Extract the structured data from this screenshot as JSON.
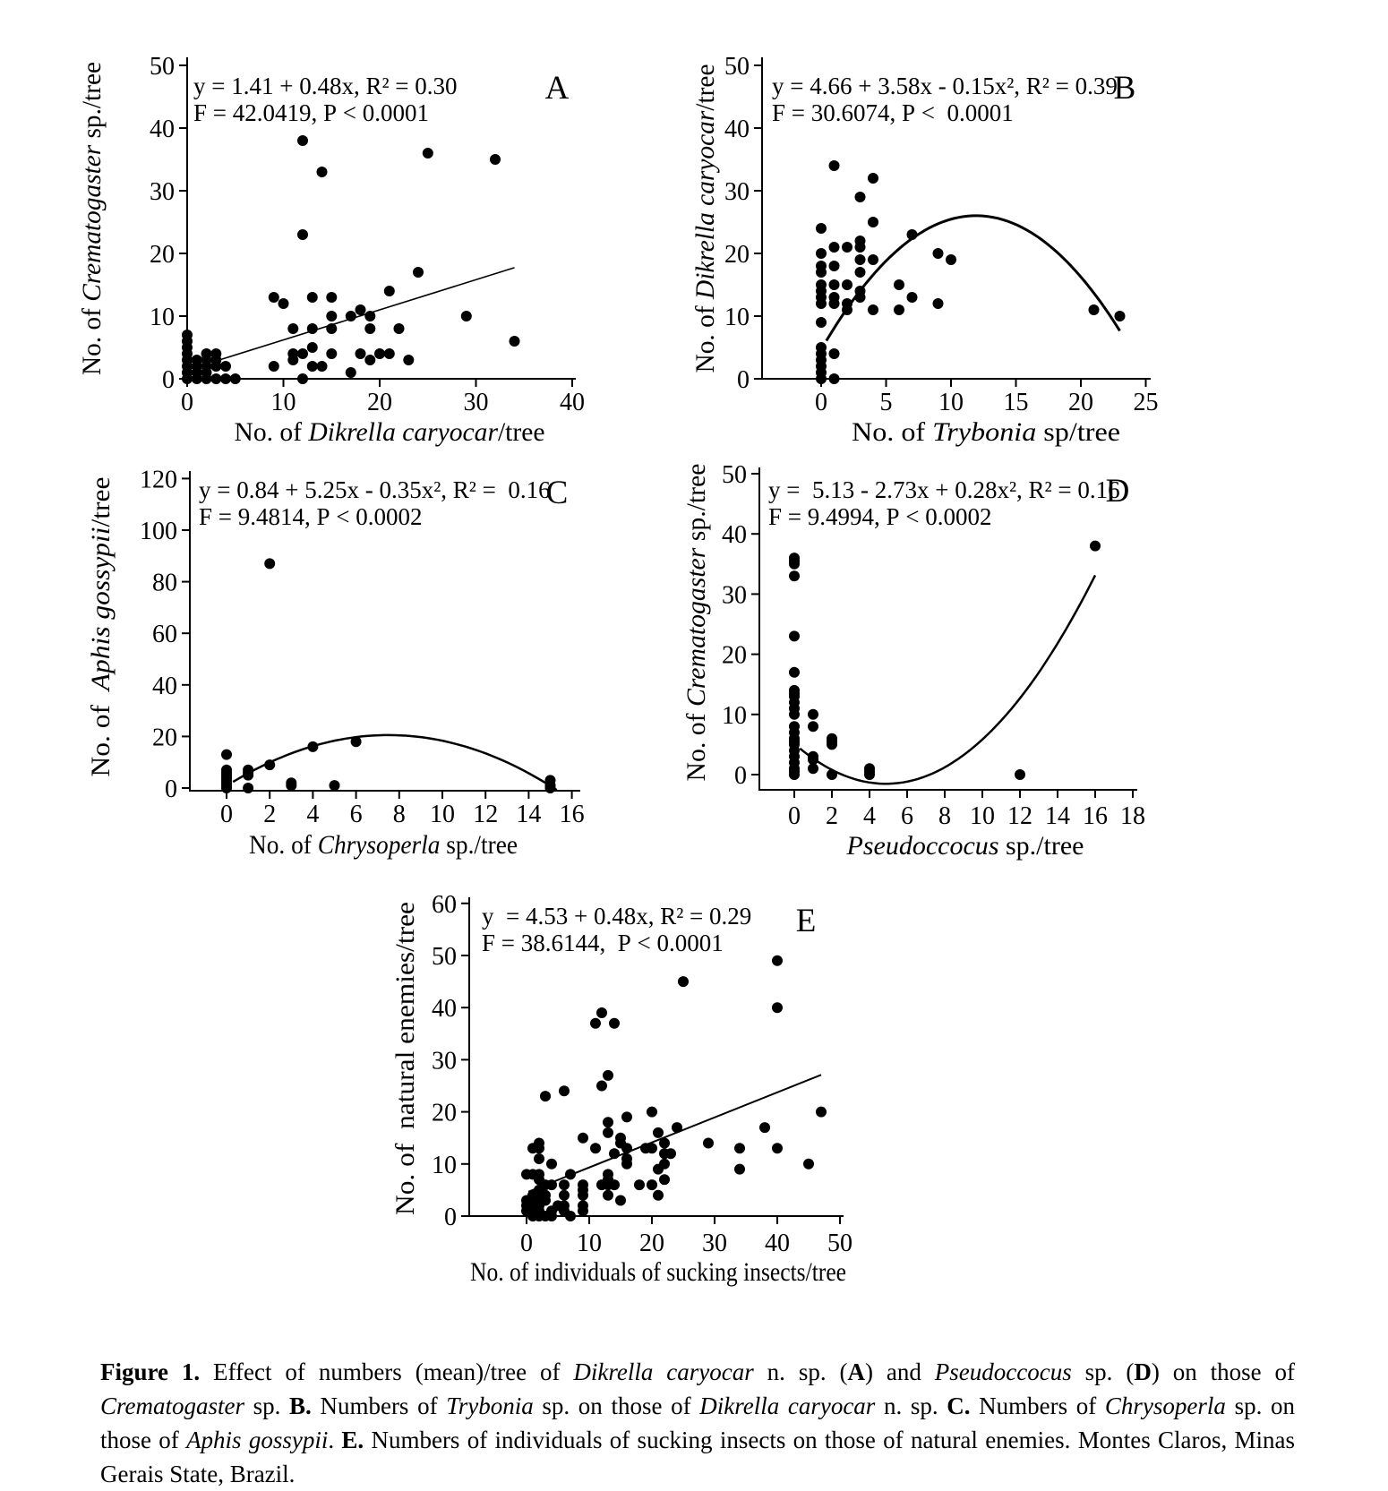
{
  "colors": {
    "background": "#ffffff",
    "ink": "#000000"
  },
  "caption_segments": [
    {
      "t": "Figure 1.",
      "b": true
    },
    {
      "t": " Effect of numbers (mean)/tree of "
    },
    {
      "t": "Dikrella caryocar",
      "i": true
    },
    {
      "t": " n. sp. ("
    },
    {
      "t": "A",
      "b": true
    },
    {
      "t": ") and "
    },
    {
      "t": "Pseudoccocus",
      "i": true
    },
    {
      "t": " sp. ("
    },
    {
      "t": "D",
      "b": true
    },
    {
      "t": ") on those of "
    },
    {
      "t": "Crematogaster",
      "i": true
    },
    {
      "t": " sp. "
    },
    {
      "t": "B.",
      "b": true
    },
    {
      "t": " Numbers of "
    },
    {
      "t": "Trybonia",
      "i": true
    },
    {
      "t": " sp. on those of "
    },
    {
      "t": "Dikrella caryocar",
      "i": true
    },
    {
      "t": " n. sp. "
    },
    {
      "t": "C.",
      "b": true
    },
    {
      "t": " Numbers of "
    },
    {
      "t": "Chrysoperla",
      "i": true
    },
    {
      "t": " sp. on those of "
    },
    {
      "t": "Aphis gossypii",
      "i": true
    },
    {
      "t": ". "
    },
    {
      "t": "E.",
      "b": true
    },
    {
      "t": " Numbers of individuals of sucking insects on those of natural enemies. Montes Claros, Minas Gerais State, Brazil."
    }
  ],
  "chart_data": [
    {
      "id": "A",
      "panel_label": "A",
      "type": "scatter",
      "equation": [
        "y = 1.41 + 0.48x, R² = 0.30",
        "F = 42.0419, P < 0.0001"
      ],
      "ylabel_segments": [
        {
          "t": "No. of "
        },
        {
          "t": "Crematogaster",
          "i": true
        },
        {
          "t": " sp./tree"
        }
      ],
      "xlabel_segments": [
        {
          "t": "No. of "
        },
        {
          "t": "Dikrella caryocar",
          "i": true
        },
        {
          "t": "/tree"
        }
      ],
      "xlim": [
        0,
        40
      ],
      "xticks": [
        0,
        10,
        20,
        30,
        40
      ],
      "ylim": [
        0,
        50
      ],
      "yticks": [
        0,
        10,
        20,
        30,
        40,
        50
      ],
      "fit": {
        "kind": "linear",
        "a": 1.41,
        "b": 0.48,
        "c": 0,
        "x_range": [
          3,
          34
        ],
        "stroke_width": 1.6
      },
      "points": [
        [
          0,
          0
        ],
        [
          0,
          1
        ],
        [
          0,
          2
        ],
        [
          0,
          3
        ],
        [
          0,
          4
        ],
        [
          0,
          5
        ],
        [
          0,
          6
        ],
        [
          0,
          7
        ],
        [
          1,
          0
        ],
        [
          1,
          1
        ],
        [
          1,
          2
        ],
        [
          1,
          3
        ],
        [
          2,
          0
        ],
        [
          2,
          1
        ],
        [
          2,
          2
        ],
        [
          2,
          3
        ],
        [
          2,
          4
        ],
        [
          3,
          0
        ],
        [
          3,
          2
        ],
        [
          3,
          3
        ],
        [
          3,
          4
        ],
        [
          4,
          0
        ],
        [
          4,
          2
        ],
        [
          5,
          0
        ],
        [
          9,
          2
        ],
        [
          9,
          13
        ],
        [
          10,
          12
        ],
        [
          11,
          3
        ],
        [
          11,
          4
        ],
        [
          11,
          8
        ],
        [
          12,
          0
        ],
        [
          12,
          4
        ],
        [
          12,
          23
        ],
        [
          12,
          38
        ],
        [
          13,
          2
        ],
        [
          13,
          5
        ],
        [
          13,
          8
        ],
        [
          13,
          13
        ],
        [
          14,
          2
        ],
        [
          14,
          33
        ],
        [
          15,
          4
        ],
        [
          15,
          8
        ],
        [
          15,
          10
        ],
        [
          15,
          13
        ],
        [
          17,
          1
        ],
        [
          17,
          10
        ],
        [
          18,
          4
        ],
        [
          18,
          11
        ],
        [
          19,
          3
        ],
        [
          19,
          8
        ],
        [
          19,
          10
        ],
        [
          20,
          4
        ],
        [
          21,
          4
        ],
        [
          21,
          14
        ],
        [
          22,
          8
        ],
        [
          23,
          3
        ],
        [
          24,
          17
        ],
        [
          25,
          36
        ],
        [
          29,
          10
        ],
        [
          32,
          35
        ],
        [
          34,
          6
        ]
      ]
    },
    {
      "id": "B",
      "panel_label": "B",
      "type": "scatter",
      "equation": [
        "y = 4.66 + 3.58x - 0.15x², R² = 0.39",
        "F = 30.6074, P <  0.0001"
      ],
      "ylabel_segments": [
        {
          "t": "No. of "
        },
        {
          "t": "Dikrella caryocar",
          "i": true
        },
        {
          "t": "/tree"
        }
      ],
      "xlabel_segments": [
        {
          "t": "No. of "
        },
        {
          "t": "Trybonia",
          "i": true
        },
        {
          "t": " sp/tree"
        }
      ],
      "xlim": [
        0,
        25
      ],
      "xticks": [
        0,
        5,
        10,
        15,
        20,
        25
      ],
      "ylim": [
        0,
        50
      ],
      "yticks": [
        0,
        10,
        20,
        30,
        40,
        50
      ],
      "fit": {
        "kind": "quadratic",
        "a": 4.66,
        "b": 3.58,
        "c": -0.15,
        "x_range": [
          0.4,
          23
        ],
        "stroke_width": 3
      },
      "points": [
        [
          0,
          0
        ],
        [
          0,
          1
        ],
        [
          0,
          2
        ],
        [
          0,
          3
        ],
        [
          0,
          4
        ],
        [
          0,
          5
        ],
        [
          0,
          9
        ],
        [
          0,
          12
        ],
        [
          0,
          13
        ],
        [
          0,
          14
        ],
        [
          0,
          15
        ],
        [
          0,
          17
        ],
        [
          0,
          18
        ],
        [
          0,
          20
        ],
        [
          0,
          24
        ],
        [
          1,
          0
        ],
        [
          1,
          4
        ],
        [
          1,
          12
        ],
        [
          1,
          13
        ],
        [
          1,
          15
        ],
        [
          1,
          18
        ],
        [
          1,
          21
        ],
        [
          1,
          34
        ],
        [
          2,
          11
        ],
        [
          2,
          12
        ],
        [
          2,
          15
        ],
        [
          2,
          21
        ],
        [
          3,
          13
        ],
        [
          3,
          14
        ],
        [
          3,
          17
        ],
        [
          3,
          19
        ],
        [
          3,
          21
        ],
        [
          3,
          22
        ],
        [
          3,
          29
        ],
        [
          4,
          11
        ],
        [
          4,
          19
        ],
        [
          4,
          25
        ],
        [
          4,
          32
        ],
        [
          6,
          11
        ],
        [
          6,
          15
        ],
        [
          7,
          13
        ],
        [
          7,
          23
        ],
        [
          9,
          12
        ],
        [
          9,
          20
        ],
        [
          10,
          19
        ],
        [
          21,
          11
        ],
        [
          23,
          10
        ]
      ]
    },
    {
      "id": "C",
      "panel_label": "C",
      "type": "scatter",
      "equation": [
        "y = 0.84 + 5.25x - 0.35x², R² =  0.16",
        "F = 9.4814, P < 0.0002"
      ],
      "ylabel_segments": [
        {
          "t": "No. of  "
        },
        {
          "t": "Aphis gossypii",
          "i": true
        },
        {
          "t": "/tree"
        }
      ],
      "xlabel_segments": [
        {
          "t": "No. of "
        },
        {
          "t": "Chrysoperla",
          "i": true
        },
        {
          "t": " sp./tree"
        }
      ],
      "xlim": [
        0,
        16
      ],
      "xticks": [
        0,
        2,
        4,
        6,
        8,
        10,
        12,
        14,
        16
      ],
      "ylim": [
        0,
        120
      ],
      "yticks": [
        0,
        20,
        40,
        60,
        80,
        100,
        120
      ],
      "fit": {
        "kind": "quadratic",
        "a": 0.84,
        "b": 5.25,
        "c": -0.35,
        "x_range": [
          0.3,
          15.3
        ],
        "stroke_width": 2.5
      },
      "points": [
        [
          0,
          0
        ],
        [
          0,
          1
        ],
        [
          0,
          2
        ],
        [
          0,
          3
        ],
        [
          0,
          4
        ],
        [
          0,
          5
        ],
        [
          0,
          6
        ],
        [
          0,
          7
        ],
        [
          0,
          13
        ],
        [
          1,
          0
        ],
        [
          1,
          5
        ],
        [
          1,
          6
        ],
        [
          1,
          7
        ],
        [
          2,
          9
        ],
        [
          2,
          87
        ],
        [
          3,
          1
        ],
        [
          3,
          2
        ],
        [
          4,
          16
        ],
        [
          5,
          1
        ],
        [
          6,
          18
        ],
        [
          15,
          0
        ],
        [
          15,
          1
        ],
        [
          15,
          3
        ]
      ]
    },
    {
      "id": "D",
      "panel_label": "D",
      "type": "scatter",
      "equation": [
        "y =  5.13 - 2.73x + 0.28x², R² = 0.16",
        "F = 9.4994, P < 0.0002"
      ],
      "ylabel_segments": [
        {
          "t": "No. of "
        },
        {
          "t": "Crematogaster",
          "i": true
        },
        {
          "t": " sp./tree"
        }
      ],
      "xlabel_segments": [
        {
          "t": "Pseudoccocus",
          "i": true
        },
        {
          "t": " sp./tree"
        }
      ],
      "xlim": [
        0,
        18
      ],
      "xticks": [
        0,
        2,
        4,
        6,
        8,
        10,
        12,
        14,
        16,
        18
      ],
      "ylim": [
        0,
        50
      ],
      "yticks": [
        0,
        10,
        20,
        30,
        40,
        50
      ],
      "fit": {
        "kind": "quadratic",
        "a": 5.13,
        "b": -2.73,
        "c": 0.28,
        "x_range": [
          0.3,
          16
        ],
        "stroke_width": 2.5
      },
      "points": [
        [
          0,
          0
        ],
        [
          0,
          0.5
        ],
        [
          0,
          1
        ],
        [
          0,
          2
        ],
        [
          0,
          3
        ],
        [
          0,
          4
        ],
        [
          0,
          5
        ],
        [
          0,
          5.5
        ],
        [
          0,
          6
        ],
        [
          0,
          7
        ],
        [
          0,
          8
        ],
        [
          0,
          10
        ],
        [
          0,
          11
        ],
        [
          0,
          12
        ],
        [
          0,
          13
        ],
        [
          0,
          13.5
        ],
        [
          0,
          14
        ],
        [
          0,
          17
        ],
        [
          0,
          23
        ],
        [
          0,
          33
        ],
        [
          0,
          35
        ],
        [
          0,
          35.5
        ],
        [
          0,
          36
        ],
        [
          1,
          1
        ],
        [
          1,
          2.5
        ],
        [
          1,
          3
        ],
        [
          1,
          8
        ],
        [
          1,
          10
        ],
        [
          2,
          0
        ],
        [
          2,
          5
        ],
        [
          2,
          5.5
        ],
        [
          2,
          6
        ],
        [
          4,
          0
        ],
        [
          4,
          0.5
        ],
        [
          4,
          1
        ],
        [
          12,
          0
        ],
        [
          16,
          38
        ]
      ]
    },
    {
      "id": "E",
      "panel_label": "E",
      "type": "scatter",
      "equation": [
        "y  = 4.53 + 0.48x, R² = 0.29",
        "F = 38.6144,  P < 0.0001"
      ],
      "ylabel_segments": [
        {
          "t": "No. of  natural enemies/tree"
        }
      ],
      "xlabel_segments": [
        {
          "t": "No. of individuals of sucking insects/tree"
        }
      ],
      "xlim": [
        0,
        50
      ],
      "xticks": [
        0,
        10,
        20,
        30,
        40,
        50
      ],
      "ylim": [
        0,
        60
      ],
      "yticks": [
        0,
        10,
        20,
        30,
        40,
        50,
        60
      ],
      "fit": {
        "kind": "linear",
        "a": 4.53,
        "b": 0.48,
        "c": 0,
        "x_range": [
          0.3,
          47
        ],
        "stroke_width": 2
      },
      "points": [
        [
          0,
          1
        ],
        [
          0,
          2
        ],
        [
          0,
          3
        ],
        [
          0,
          8
        ],
        [
          1,
          0
        ],
        [
          1,
          1
        ],
        [
          1,
          2
        ],
        [
          1,
          3
        ],
        [
          1,
          4
        ],
        [
          1,
          8
        ],
        [
          1,
          13
        ],
        [
          2,
          0
        ],
        [
          2,
          1
        ],
        [
          2,
          2
        ],
        [
          2,
          3
        ],
        [
          2,
          5
        ],
        [
          2,
          7
        ],
        [
          2,
          8
        ],
        [
          2,
          11
        ],
        [
          2,
          13
        ],
        [
          2,
          14
        ],
        [
          3,
          0
        ],
        [
          3,
          3
        ],
        [
          3,
          4
        ],
        [
          3,
          6
        ],
        [
          3,
          23
        ],
        [
          4,
          0
        ],
        [
          4,
          1
        ],
        [
          4,
          6
        ],
        [
          4,
          10
        ],
        [
          5,
          2
        ],
        [
          6,
          1
        ],
        [
          6,
          2
        ],
        [
          6,
          4
        ],
        [
          6,
          6
        ],
        [
          6,
          24
        ],
        [
          7,
          0
        ],
        [
          7,
          8
        ],
        [
          9,
          1
        ],
        [
          9,
          2
        ],
        [
          9,
          4
        ],
        [
          9,
          5
        ],
        [
          9,
          6
        ],
        [
          9,
          15
        ],
        [
          11,
          13
        ],
        [
          11,
          37
        ],
        [
          12,
          6
        ],
        [
          12,
          25
        ],
        [
          12,
          39
        ],
        [
          13,
          4
        ],
        [
          13,
          6
        ],
        [
          13,
          7
        ],
        [
          13,
          8
        ],
        [
          13,
          16
        ],
        [
          13,
          18
        ],
        [
          13,
          27
        ],
        [
          14,
          6
        ],
        [
          14,
          12
        ],
        [
          14,
          37
        ],
        [
          15,
          3
        ],
        [
          15,
          14
        ],
        [
          15,
          15
        ],
        [
          16,
          10
        ],
        [
          16,
          11
        ],
        [
          16,
          13
        ],
        [
          16,
          19
        ],
        [
          18,
          6
        ],
        [
          19,
          13
        ],
        [
          20,
          6
        ],
        [
          20,
          13
        ],
        [
          20,
          20
        ],
        [
          21,
          4
        ],
        [
          21,
          9
        ],
        [
          21,
          16
        ],
        [
          22,
          7
        ],
        [
          22,
          10
        ],
        [
          22,
          12
        ],
        [
          22,
          14
        ],
        [
          23,
          12
        ],
        [
          24,
          17
        ],
        [
          25,
          45
        ],
        [
          29,
          14
        ],
        [
          34,
          9
        ],
        [
          34,
          13
        ],
        [
          38,
          17
        ],
        [
          40,
          13
        ],
        [
          40,
          40
        ],
        [
          40,
          49
        ],
        [
          45,
          10
        ],
        [
          47,
          20
        ]
      ]
    }
  ]
}
